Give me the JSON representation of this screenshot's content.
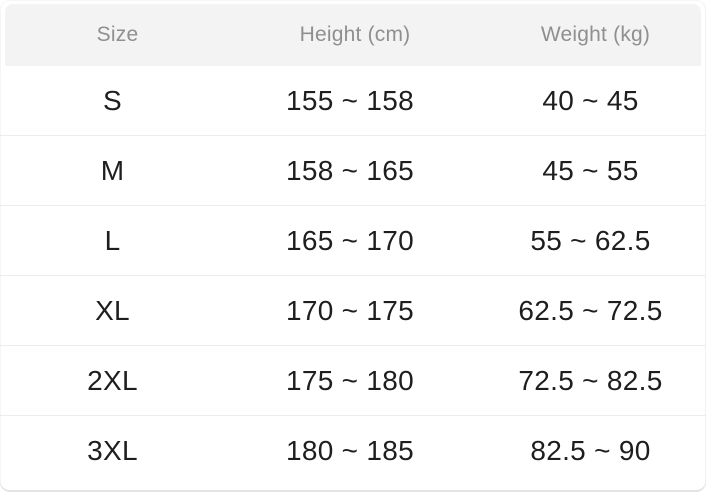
{
  "chart_data": {
    "type": "table",
    "columns": [
      "Size",
      "Height (cm)",
      "Weight (kg)"
    ],
    "rows": [
      {
        "size": "S",
        "height": "155 ~ 158",
        "weight": "40 ~ 45"
      },
      {
        "size": "M",
        "height": "158 ~ 165",
        "weight": "45 ~ 55"
      },
      {
        "size": "L",
        "height": "165 ~ 170",
        "weight": "55 ~ 62.5"
      },
      {
        "size": "XL",
        "height": "170 ~ 175",
        "weight": "62.5 ~ 72.5"
      },
      {
        "size": "2XL",
        "height": "175 ~ 180",
        "weight": "72.5 ~ 82.5"
      },
      {
        "size": "3XL",
        "height": "180 ~ 185",
        "weight": "82.5 ~ 90"
      }
    ],
    "layout": {
      "grid": "off",
      "header_position": "top",
      "row_count": 6,
      "column_count": 3
    }
  },
  "colors": {
    "header_background": "#f3f3f3",
    "header_text": "#8f8f8f",
    "body_text": "#1e1e1e",
    "row_divider": "#ececec",
    "card_edge": "#e4e4e4",
    "background": "#ffffff"
  }
}
